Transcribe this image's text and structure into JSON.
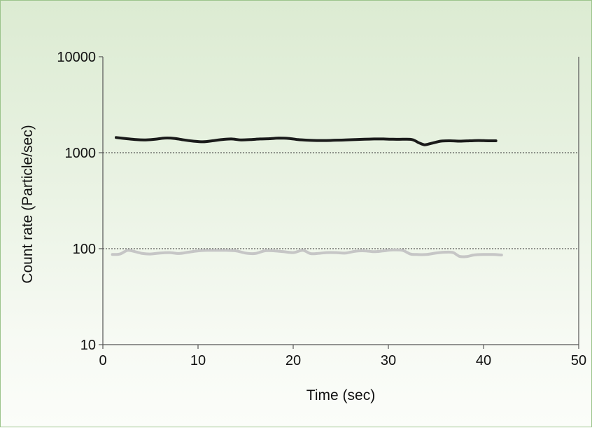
{
  "chart_data": {
    "type": "line",
    "xlabel": "Time (sec)",
    "ylabel": "Count rate (Particle/sec)",
    "xlim": [
      0,
      50
    ],
    "ylim": [
      10,
      10000
    ],
    "yscale": "log",
    "grid": "dashed lines at 100 and 1000",
    "legend": "none",
    "x_ticks": [
      "0",
      "10",
      "20",
      "30",
      "40",
      "50"
    ],
    "y_ticks": [
      "10",
      "100",
      "1000",
      "10000"
    ],
    "series": [
      {
        "color": "#1a1a1a",
        "x": [
          1.4,
          2.5,
          3.5,
          4.5,
          5.5,
          6.5,
          7.5,
          8.5,
          9.5,
          10.5,
          11.5,
          12.5,
          13.5,
          14.5,
          15.5,
          16.5,
          17.5,
          18.5,
          19.5,
          20.5,
          21.5,
          22.5,
          23.5,
          24.5,
          25.5,
          26.5,
          27.5,
          28.5,
          29.5,
          30.5,
          31.5,
          32.5,
          33.2,
          33.8,
          34.5,
          35.5,
          36.5,
          37.5,
          38.5,
          39.5,
          40.5,
          41.3
        ],
        "y": [
          1440,
          1400,
          1370,
          1360,
          1380,
          1420,
          1410,
          1360,
          1320,
          1300,
          1330,
          1370,
          1390,
          1360,
          1370,
          1390,
          1400,
          1420,
          1410,
          1370,
          1350,
          1340,
          1340,
          1350,
          1360,
          1370,
          1380,
          1390,
          1390,
          1380,
          1380,
          1370,
          1270,
          1210,
          1250,
          1320,
          1330,
          1320,
          1330,
          1340,
          1330,
          1330
        ]
      },
      {
        "color": "#c6c6c6",
        "x": [
          1.0,
          1.8,
          2.6,
          3.4,
          4.2,
          5.0,
          6.0,
          7.0,
          8.0,
          9.0,
          10.0,
          11.0,
          12.0,
          13.0,
          14.0,
          15.0,
          16.0,
          17.0,
          18.0,
          19.0,
          20.0,
          21.0,
          21.8,
          22.5,
          23.5,
          24.5,
          25.5,
          26.5,
          27.5,
          28.5,
          29.5,
          30.5,
          31.5,
          32.3,
          33.0,
          34.0,
          35.0,
          36.0,
          36.8,
          37.5,
          38.3,
          39.0,
          40.0,
          41.0,
          41.9
        ],
        "y": [
          87,
          88,
          96,
          93,
          89,
          88,
          90,
          91,
          89,
          92,
          95,
          96,
          96,
          96,
          95,
          90,
          89,
          95,
          95,
          93,
          91,
          96,
          89,
          89,
          91,
          91,
          90,
          94,
          95,
          93,
          95,
          97,
          96,
          88,
          87,
          87,
          90,
          92,
          91,
          83,
          83,
          86,
          87,
          87,
          86
        ]
      }
    ]
  }
}
